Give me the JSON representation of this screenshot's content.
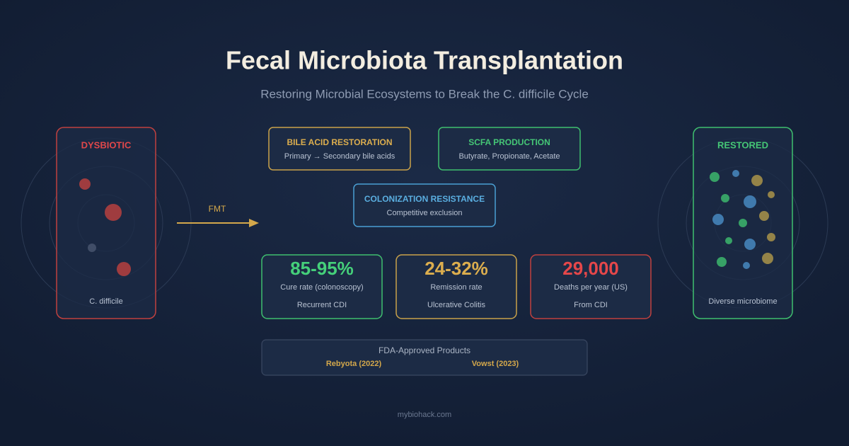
{
  "header": {
    "title": "Fecal Microbiota Transplantation",
    "subtitle": "Restoring Microbial Ecosystems to Break the C. difficile Cycle"
  },
  "left_panel": {
    "label": "DYSBIOTIC",
    "caption": "C. difficile"
  },
  "right_panel": {
    "label": "RESTORED",
    "caption": "Diverse microbiome"
  },
  "arrow": {
    "label": "FMT"
  },
  "mechanisms": [
    {
      "title": "BILE ACID RESTORATION",
      "text": "Primary → Secondary bile acids"
    },
    {
      "title": "SCFA PRODUCTION",
      "text": "Butyrate, Propionate, Acetate"
    },
    {
      "title": "COLONIZATION RESISTANCE",
      "text": "Competitive exclusion"
    }
  ],
  "stats": [
    {
      "value": "85-95%",
      "label": "Cure rate (colonoscopy)",
      "note": "Recurrent CDI"
    },
    {
      "value": "24-32%",
      "label": "Remission rate",
      "note": "Ulcerative Colitis"
    },
    {
      "value": "29,000",
      "label": "Deaths per year (US)",
      "note": "From CDI"
    }
  ],
  "fda": {
    "title": "FDA-Approved Products",
    "products": [
      "Rebyota (2022)",
      "Vowst (2023)"
    ]
  },
  "footer": "mybiohack.com"
}
